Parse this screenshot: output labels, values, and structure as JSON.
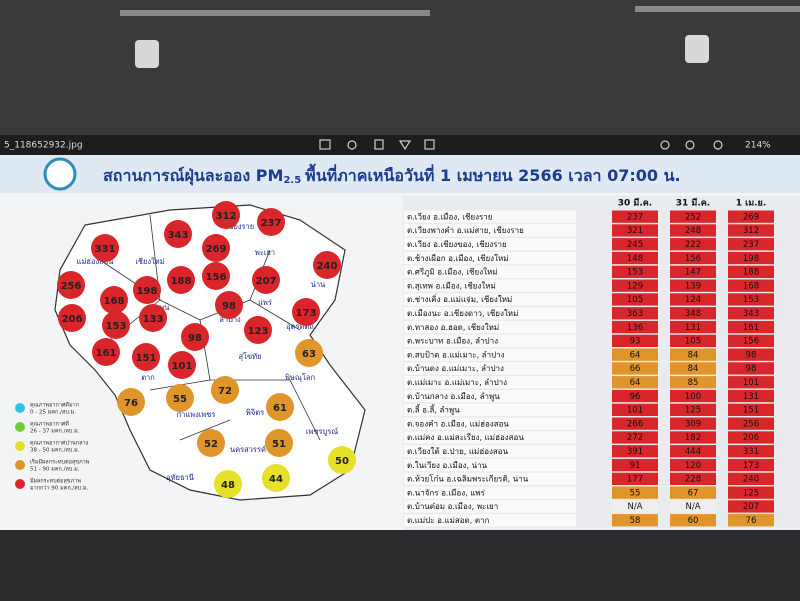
{
  "viewer": {
    "filename": "5_118652932.jpg",
    "zoom": "214%"
  },
  "header": {
    "title_start": "สถานการณ์ฝุ่นละออง PM",
    "title_sub": "2.5",
    "title_end": "พื้นที่ภาคเหนือวันที่ 1 เมษายน 2566 เวลา 07:00 น."
  },
  "map": {
    "provinces": [
      "เชียงราย",
      "แม่ฮ่องสอน",
      "เชียงใหม่",
      "พะเยา",
      "น่าน",
      "ลำพูน",
      "ลำปาง",
      "แพร่",
      "อุตรดิตถ์",
      "ตาก",
      "สุโขทัย",
      "พิษณุโลก",
      "กำแพงเพชร",
      "พิจิตร",
      "นครสวรรค์",
      "เพชรบูรณ์",
      "อุทัยธานี"
    ],
    "stations": [
      {
        "value": 312,
        "color": "#d9262a"
      },
      {
        "value": 237,
        "color": "#d9262a"
      },
      {
        "value": 331,
        "color": "#d9262a"
      },
      {
        "value": 343,
        "color": "#d9262a"
      },
      {
        "value": 269,
        "color": "#d9262a"
      },
      {
        "value": 240,
        "color": "#d9262a"
      },
      {
        "value": 256,
        "color": "#d9262a"
      },
      {
        "value": 198,
        "color": "#d9262a"
      },
      {
        "value": 188,
        "color": "#d9262a"
      },
      {
        "value": 156,
        "color": "#d9262a"
      },
      {
        "value": 207,
        "color": "#d9262a"
      },
      {
        "value": 168,
        "color": "#d9262a"
      },
      {
        "value": 206,
        "color": "#d9262a"
      },
      {
        "value": 153,
        "color": "#d9262a"
      },
      {
        "value": 133,
        "color": "#d9262a"
      },
      {
        "value": 98,
        "color": "#d9262a"
      },
      {
        "value": 173,
        "color": "#d9262a"
      },
      {
        "value": 123,
        "color": "#d9262a"
      },
      {
        "value": 161,
        "color": "#d9262a"
      },
      {
        "value": 151,
        "color": "#d9262a"
      },
      {
        "value": 98,
        "color": "#d9262a"
      },
      {
        "value": 101,
        "color": "#d9262a"
      },
      {
        "value": 63,
        "color": "#e0952a"
      },
      {
        "value": 72,
        "color": "#e0952a"
      },
      {
        "value": 76,
        "color": "#e0952a"
      },
      {
        "value": 55,
        "color": "#e0952a"
      },
      {
        "value": 61,
        "color": "#e0952a"
      },
      {
        "value": 52,
        "color": "#e0952a"
      },
      {
        "value": 51,
        "color": "#e0952a"
      },
      {
        "value": 50,
        "color": "#e6e02a"
      },
      {
        "value": 48,
        "color": "#e6e02a"
      },
      {
        "value": 44,
        "color": "#e6e02a"
      }
    ]
  },
  "legend": [
    {
      "label": "คุณภาพอากาศดีมาก",
      "range": "0 - 25 มคก./ลบ.ม.",
      "color": "#2ec4e8"
    },
    {
      "label": "คุณภาพอากาศดี",
      "range": "26 - 37 มคก./ลบ.ม.",
      "color": "#6fcf3a"
    },
    {
      "label": "คุณภาพอากาศปานกลาง",
      "range": "38 - 50 มคก./ลบ.ม.",
      "color": "#e6e02a"
    },
    {
      "label": "เริ่มมีผลกระทบต่อสุขภาพ",
      "range": "51 - 90 มคก./ลบ.ม.",
      "color": "#e0952a"
    },
    {
      "label": "มีผลกระทบต่อสุขภาพ",
      "range": "มากกว่า 90 มคก./ลบ.ม.",
      "color": "#d9262a"
    }
  ],
  "table": {
    "columns": [
      "30 มี.ค.",
      "31 มี.ค.",
      "1 เม.ย."
    ],
    "rows": [
      {
        "name": "ต.เวียง อ.เมือง, เชียงราย",
        "values": [
          237,
          252,
          269
        ],
        "colors": [
          "#d9262a",
          "#d9262a",
          "#d9262a"
        ]
      },
      {
        "name": "ต.เวียงพางคำ อ.แม่สาย, เชียงราย",
        "values": [
          321,
          248,
          312
        ],
        "colors": [
          "#d9262a",
          "#d9262a",
          "#d9262a"
        ]
      },
      {
        "name": "ต.เวียง อ.เชียงของ, เชียงราย",
        "values": [
          245,
          222,
          237
        ],
        "colors": [
          "#d9262a",
          "#d9262a",
          "#d9262a"
        ]
      },
      {
        "name": "ต.ช้างเผือก อ.เมือง, เชียงใหม่",
        "values": [
          148,
          156,
          198
        ],
        "colors": [
          "#d9262a",
          "#d9262a",
          "#d9262a"
        ]
      },
      {
        "name": "ต.ศรีภูมิ อ.เมือง, เชียงใหม่",
        "values": [
          153,
          147,
          188
        ],
        "colors": [
          "#d9262a",
          "#d9262a",
          "#d9262a"
        ]
      },
      {
        "name": "ต.สุเทพ อ.เมือง, เชียงใหม่",
        "values": [
          129,
          139,
          168
        ],
        "colors": [
          "#d9262a",
          "#d9262a",
          "#d9262a"
        ]
      },
      {
        "name": "ต.ช่างเคิ่ง อ.แม่แจ่ม, เชียงใหม่",
        "values": [
          105,
          124,
          153
        ],
        "colors": [
          "#d9262a",
          "#d9262a",
          "#d9262a"
        ]
      },
      {
        "name": "ต.เมืองนะ อ.เชียงดาว, เชียงใหม่",
        "values": [
          363,
          348,
          343
        ],
        "colors": [
          "#d9262a",
          "#d9262a",
          "#d9262a"
        ]
      },
      {
        "name": "ต.ทาสอง อ.ฮอด, เชียงใหม่",
        "values": [
          136,
          131,
          161
        ],
        "colors": [
          "#d9262a",
          "#d9262a",
          "#d9262a"
        ]
      },
      {
        "name": "ต.พระบาท อ.เมือง, ลำปาง",
        "values": [
          93,
          105,
          156
        ],
        "colors": [
          "#d9262a",
          "#d9262a",
          "#d9262a"
        ]
      },
      {
        "name": "ต.สบป้าด อ.แม่เมาะ, ลำปาง",
        "values": [
          64,
          84,
          98
        ],
        "colors": [
          "#e0952a",
          "#e0952a",
          "#d9262a"
        ]
      },
      {
        "name": "ต.บ้านดง อ.แม่เมาะ, ลำปาง",
        "values": [
          66,
          84,
          98
        ],
        "colors": [
          "#e0952a",
          "#e0952a",
          "#d9262a"
        ]
      },
      {
        "name": "ต.แม่เมาะ อ.แม่เมาะ, ลำปาง",
        "values": [
          64,
          85,
          101
        ],
        "colors": [
          "#e0952a",
          "#e0952a",
          "#d9262a"
        ]
      },
      {
        "name": "ต.บ้านกลาง อ.เมือง, ลำพูน",
        "values": [
          96,
          100,
          131
        ],
        "colors": [
          "#d9262a",
          "#d9262a",
          "#d9262a"
        ]
      },
      {
        "name": "ต.ลี้ อ.ลี้, ลำพูน",
        "values": [
          101,
          125,
          151
        ],
        "colors": [
          "#d9262a",
          "#d9262a",
          "#d9262a"
        ]
      },
      {
        "name": "ต.จองคำ อ.เมือง, แม่ฮ่องสอน",
        "values": [
          266,
          309,
          256
        ],
        "colors": [
          "#d9262a",
          "#d9262a",
          "#d9262a"
        ]
      },
      {
        "name": "ต.แม่คง อ.แม่สะเรียง, แม่ฮ่องสอน",
        "values": [
          272,
          182,
          206
        ],
        "colors": [
          "#d9262a",
          "#d9262a",
          "#d9262a"
        ]
      },
      {
        "name": "ต.เวียงใต้ อ.ปาย, แม่ฮ่องสอน",
        "values": [
          391,
          444,
          331
        ],
        "colors": [
          "#d9262a",
          "#d9262a",
          "#d9262a"
        ]
      },
      {
        "name": "ต.ในเวียง อ.เมือง, น่าน",
        "values": [
          91,
          120,
          173
        ],
        "colors": [
          "#d9262a",
          "#d9262a",
          "#d9262a"
        ]
      },
      {
        "name": "ต.ห้วยโก๋น อ.เฉลิมพระเกียรติ, น่าน",
        "values": [
          177,
          228,
          240
        ],
        "colors": [
          "#d9262a",
          "#d9262a",
          "#d9262a"
        ]
      },
      {
        "name": "ต.นาจักร อ.เมือง, แพร่",
        "values": [
          55,
          67,
          125
        ],
        "colors": [
          "#e0952a",
          "#e0952a",
          "#d9262a"
        ]
      },
      {
        "name": "ต.บ้านต๋อม อ.เมือง, พะเยา",
        "values": [
          "N/A",
          "N/A",
          207
        ],
        "colors": [
          "#eeeeee",
          "#eeeeee",
          "#d9262a"
        ]
      },
      {
        "name": "ต.แม่ปะ อ.แม่สอด, ตาก",
        "values": [
          58,
          60,
          76
        ],
        "colors": [
          "#e0952a",
          "#e0952a",
          "#e0952a"
        ]
      }
    ]
  }
}
